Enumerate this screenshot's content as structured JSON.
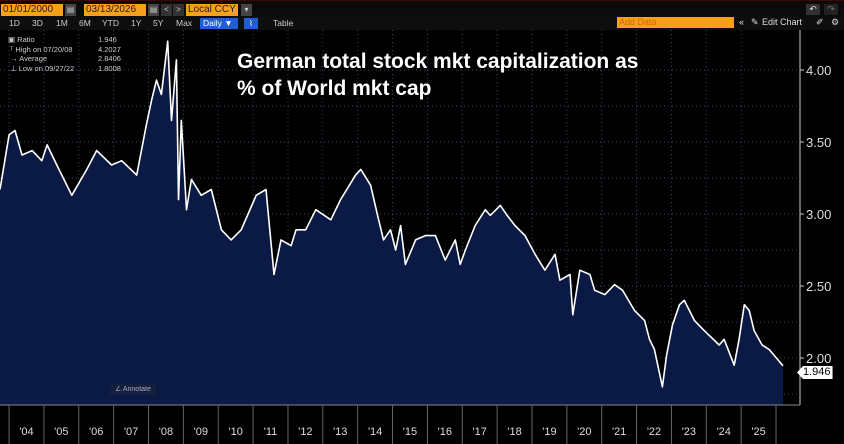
{
  "toolbar": {
    "start_date": "01/01/2000",
    "end_date": "03/13/2026",
    "currency": "Local CCY",
    "periods": [
      "1D",
      "3D",
      "1M",
      "6M",
      "YTD",
      "1Y",
      "5Y",
      "Max"
    ],
    "frequency": "Daily ▼",
    "table_label": "Table",
    "add_data_placeholder": "Add Data",
    "edit_chart_label": "Edit Chart",
    "collapse": "«",
    "undo": "↶",
    "redo": "↷",
    "prev": "<",
    "next": ">"
  },
  "legend": [
    {
      "label": "Ratio",
      "value": "1.946"
    },
    {
      "label": "High on 07/20/08",
      "value": "4.2027"
    },
    {
      "label": "Average",
      "value": "2.8406"
    },
    {
      "label": "Low on 09/27/22",
      "value": "1.8008"
    }
  ],
  "annotate_label": "Annotate",
  "colors": {
    "line": "#ffffff",
    "fill": "#0a1a44",
    "accent": "#f7a11a",
    "button": "#1f5fd0"
  },
  "chart_data": {
    "type": "area",
    "title": "German total stock mkt capitalization as % of World mkt cap",
    "xlabel": "",
    "ylabel": "",
    "ylim": [
      1.68,
      4.3
    ],
    "xlim": [
      2003.74,
      2026.2
    ],
    "y_ticks": [
      "2.00",
      "2.50",
      "3.00",
      "3.50",
      "4.00"
    ],
    "x_ticks": [
      "'04",
      "'05",
      "'06",
      "'07",
      "'08",
      "'09",
      "'10",
      "'11",
      "'12",
      "'13",
      "'14",
      "'15",
      "'16",
      "'17",
      "'18",
      "'19",
      "'20",
      "'21",
      "'22",
      "'23",
      "'24",
      "'25"
    ],
    "grid": true,
    "last_value": "1.946",
    "x": [
      2003.74,
      2004.0,
      2004.17,
      2004.37,
      2004.66,
      2004.94,
      2005.09,
      2005.37,
      2005.8,
      2006.23,
      2006.51,
      2006.94,
      2007.23,
      2007.66,
      2007.94,
      2008.09,
      2008.23,
      2008.37,
      2008.55,
      2008.66,
      2008.8,
      2008.86,
      2008.94,
      2009.09,
      2009.23,
      2009.51,
      2009.8,
      2010.09,
      2010.37,
      2010.66,
      2011.09,
      2011.37,
      2011.6,
      2011.8,
      2012.09,
      2012.23,
      2012.51,
      2012.8,
      2013.23,
      2013.51,
      2013.94,
      2014.09,
      2014.37,
      2014.57,
      2014.74,
      2014.94,
      2015.09,
      2015.23,
      2015.37,
      2015.66,
      2015.94,
      2016.23,
      2016.51,
      2016.8,
      2016.94,
      2017.09,
      2017.37,
      2017.66,
      2017.8,
      2018.09,
      2018.29,
      2018.51,
      2018.8,
      2019.09,
      2019.37,
      2019.66,
      2019.8,
      2020.09,
      2020.17,
      2020.37,
      2020.66,
      2020.8,
      2021.09,
      2021.37,
      2021.6,
      2021.94,
      2022.23,
      2022.37,
      2022.51,
      2022.74,
      2022.86,
      2023.03,
      2023.23,
      2023.37,
      2023.66,
      2023.94,
      2024.37,
      2024.51,
      2024.8,
      2024.94,
      2025.09,
      2025.23,
      2025.37,
      2025.6,
      2025.8,
      2026.2
    ],
    "y": [
      3.17,
      3.55,
      3.58,
      3.41,
      3.44,
      3.37,
      3.48,
      3.34,
      3.13,
      3.31,
      3.44,
      3.34,
      3.37,
      3.27,
      3.62,
      3.79,
      3.93,
      3.83,
      4.2,
      3.65,
      4.07,
      3.1,
      3.65,
      3.03,
      3.24,
      3.13,
      3.17,
      2.89,
      2.82,
      2.89,
      3.13,
      3.17,
      2.58,
      2.82,
      2.78,
      2.89,
      2.89,
      3.03,
      2.96,
      3.1,
      3.27,
      3.31,
      3.2,
      2.99,
      2.82,
      2.89,
      2.75,
      2.92,
      2.65,
      2.82,
      2.85,
      2.85,
      2.68,
      2.82,
      2.65,
      2.75,
      2.92,
      3.03,
      2.99,
      3.06,
      2.99,
      2.92,
      2.85,
      2.72,
      2.61,
      2.72,
      2.54,
      2.58,
      2.3,
      2.61,
      2.58,
      2.47,
      2.44,
      2.51,
      2.47,
      2.33,
      2.26,
      2.13,
      2.06,
      1.8,
      2.02,
      2.23,
      2.37,
      2.4,
      2.26,
      2.19,
      2.09,
      2.13,
      1.95,
      2.13,
      2.37,
      2.33,
      2.19,
      2.09,
      2.06,
      1.946
    ]
  }
}
